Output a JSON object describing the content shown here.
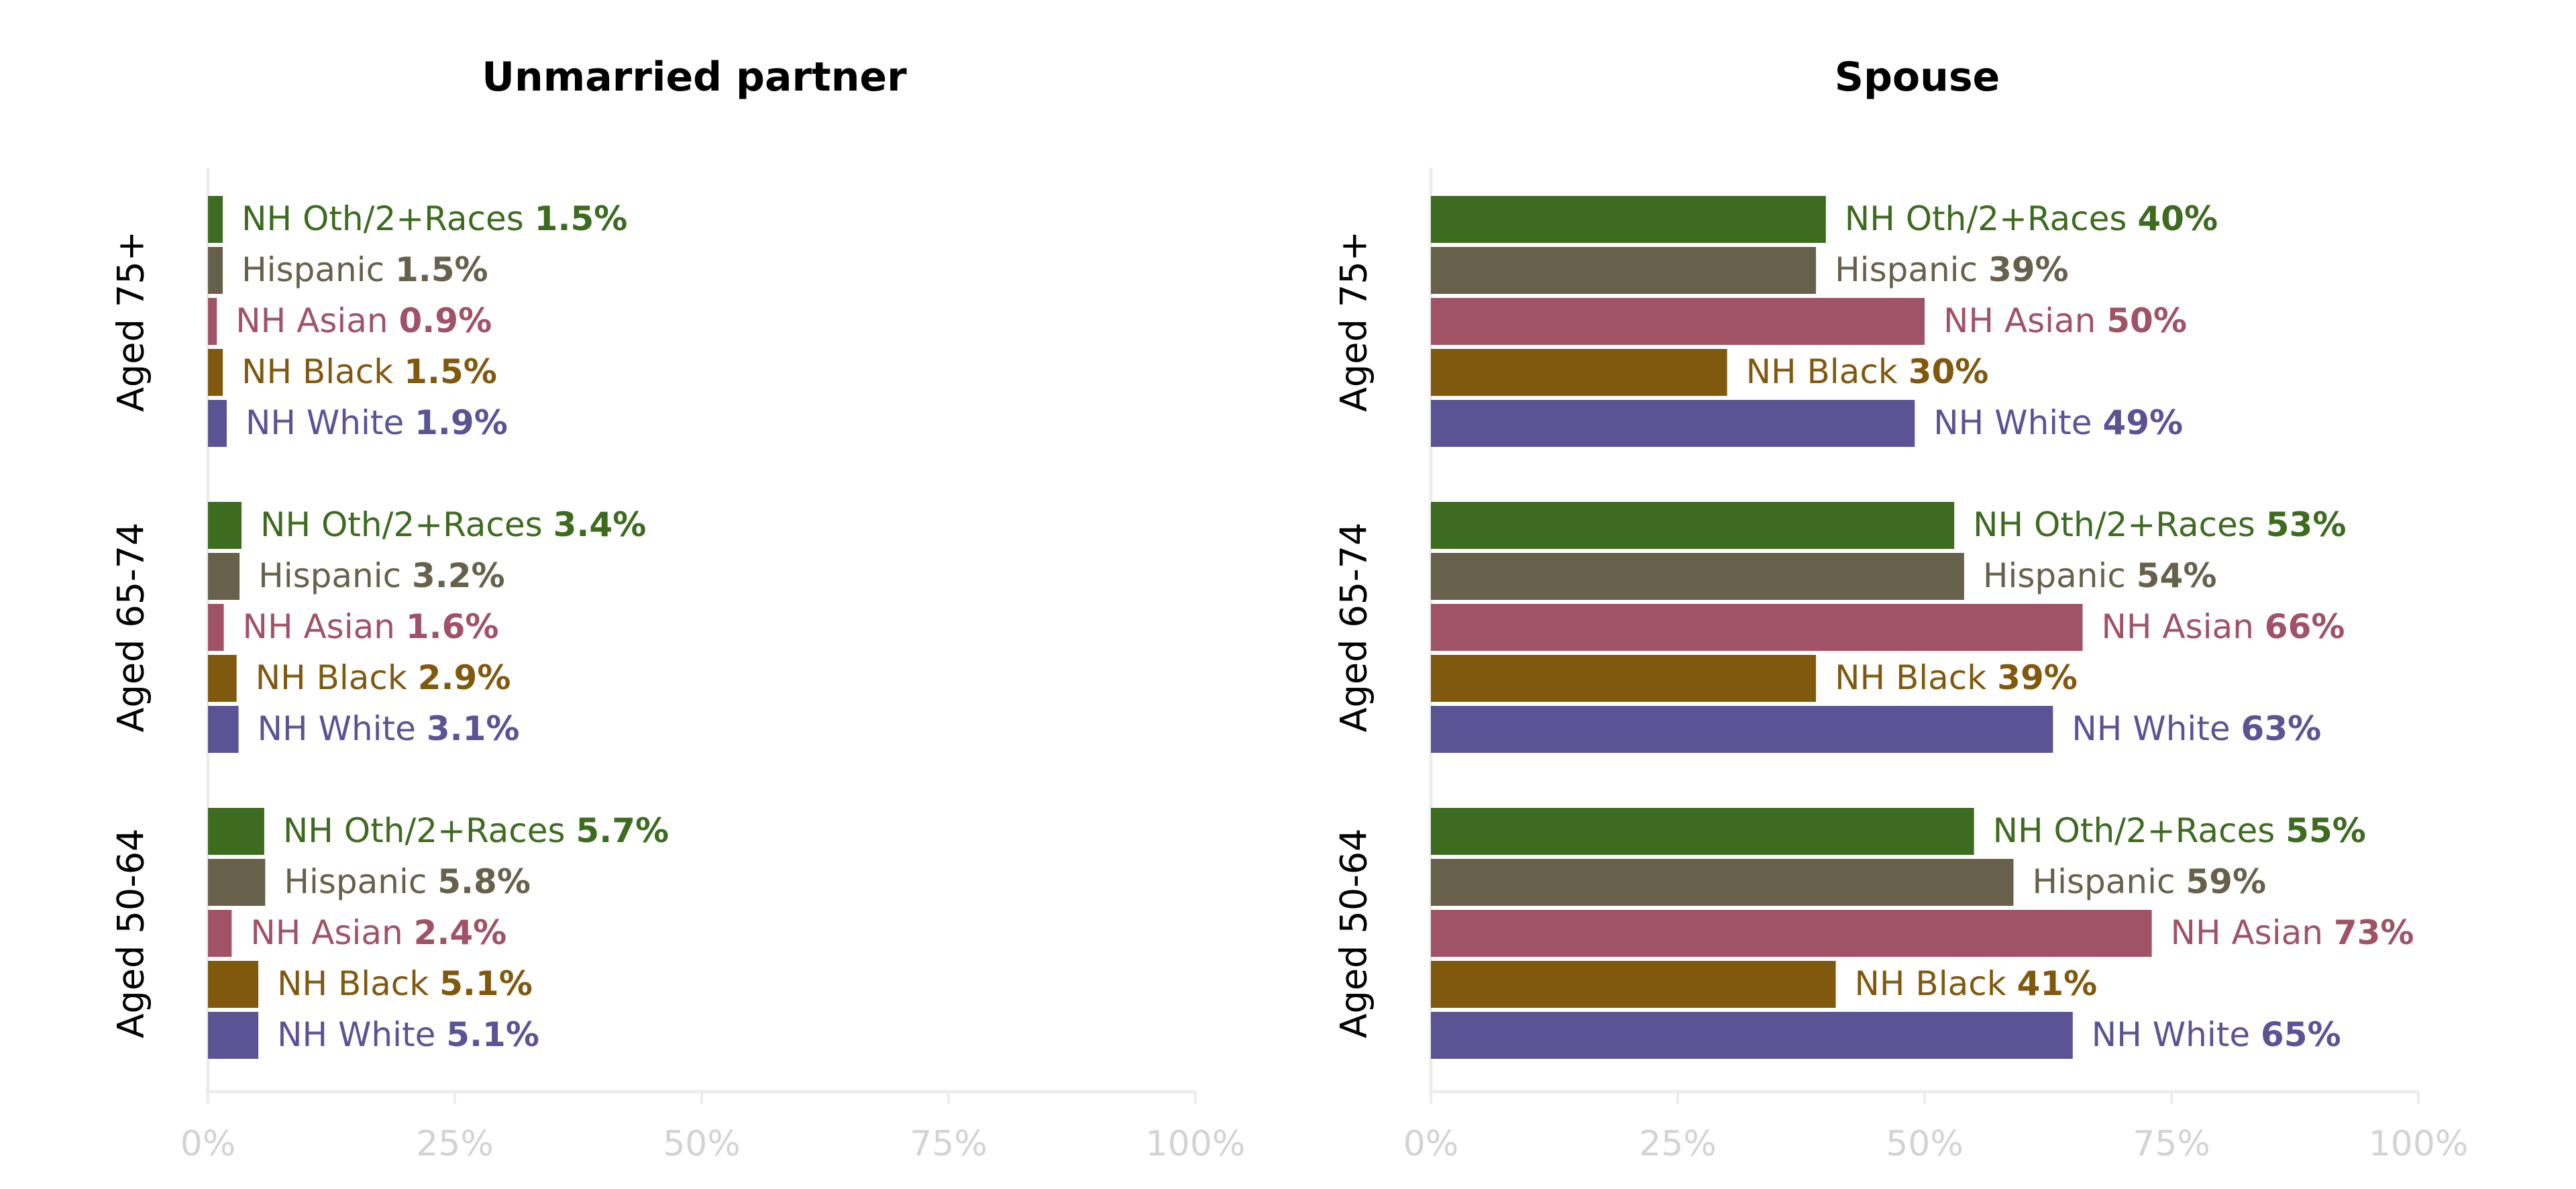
{
  "chart_data": [
    {
      "type": "bar",
      "orientation": "horizontal",
      "title": "Unmarried partner",
      "groups": [
        "Aged 75+",
        "Aged 65-74",
        "Aged 50-64"
      ],
      "series": [
        {
          "name": "NH Oth/2+Races",
          "color": "#3d6b1f",
          "values": [
            1.5,
            3.4,
            5.7
          ],
          "value_labels": [
            "1.5%",
            "3.4%",
            "5.7%"
          ]
        },
        {
          "name": "Hispanic",
          "color": "#67614b",
          "values": [
            1.5,
            3.2,
            5.8
          ],
          "value_labels": [
            "1.5%",
            "3.2%",
            "5.8%"
          ]
        },
        {
          "name": "NH Asian",
          "color": "#a05266",
          "values": [
            0.9,
            1.6,
            2.4
          ],
          "value_labels": [
            "0.9%",
            "1.6%",
            "2.4%"
          ]
        },
        {
          "name": "NH Black",
          "color": "#80590f",
          "values": [
            1.5,
            2.9,
            5.1
          ],
          "value_labels": [
            "1.5%",
            "2.9%",
            "5.1%"
          ]
        },
        {
          "name": "NH White",
          "color": "#5b5394",
          "values": [
            1.9,
            3.1,
            5.1
          ],
          "value_labels": [
            "1.9%",
            "3.1%",
            "5.1%"
          ]
        }
      ],
      "xlim": [
        0,
        100
      ],
      "xticks": [
        "0%",
        "25%",
        "50%",
        "75%",
        "100%"
      ],
      "grid": false
    },
    {
      "type": "bar",
      "orientation": "horizontal",
      "title": "Spouse",
      "groups": [
        "Aged 75+",
        "Aged 65-74",
        "Aged 50-64"
      ],
      "series": [
        {
          "name": "NH Oth/2+Races",
          "color": "#3d6b1f",
          "values": [
            40,
            53,
            55
          ],
          "value_labels": [
            "40%",
            "53%",
            "55%"
          ]
        },
        {
          "name": "Hispanic",
          "color": "#67614b",
          "values": [
            39,
            54,
            59
          ],
          "value_labels": [
            "39%",
            "54%",
            "59%"
          ]
        },
        {
          "name": "NH Asian",
          "color": "#a05266",
          "values": [
            50,
            66,
            73
          ],
          "value_labels": [
            "50%",
            "66%",
            "73%"
          ]
        },
        {
          "name": "NH Black",
          "color": "#80590f",
          "values": [
            30,
            39,
            41
          ],
          "value_labels": [
            "30%",
            "39%",
            "41%"
          ]
        },
        {
          "name": "NH White",
          "color": "#5b5394",
          "values": [
            49,
            63,
            65
          ],
          "value_labels": [
            "49%",
            "63%",
            "65%"
          ]
        }
      ],
      "xlim": [
        0,
        100
      ],
      "xticks": [
        "0%",
        "25%",
        "50%",
        "75%",
        "100%"
      ],
      "grid": false
    }
  ]
}
